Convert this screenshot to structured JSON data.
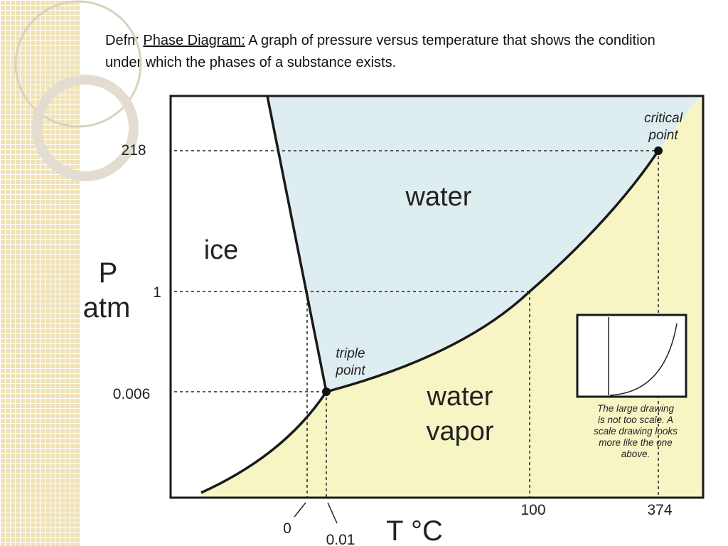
{
  "header": {
    "term": "Defn:",
    "term_link": "Phase Diagram:",
    "definition": "A graph of pressure versus temperature that shows the condition under which the phases of a substance exists."
  },
  "diagram": {
    "y_axis_label": [
      "P",
      "atm"
    ],
    "x_axis_label": "T °C",
    "y_ticks": [
      "218",
      "1",
      "0.006"
    ],
    "x_ticks": [
      "0",
      "0.01",
      "100",
      "374"
    ],
    "regions": {
      "ice": "ice",
      "water": "water",
      "vapor": [
        "water",
        "vapor"
      ]
    },
    "points": {
      "triple": [
        "triple",
        "point"
      ],
      "critical": [
        "critical",
        "point"
      ]
    },
    "inset_note": [
      "The large drawing",
      "is not too scale.  A",
      "scale drawing looks",
      "more like the one",
      "above."
    ]
  }
}
